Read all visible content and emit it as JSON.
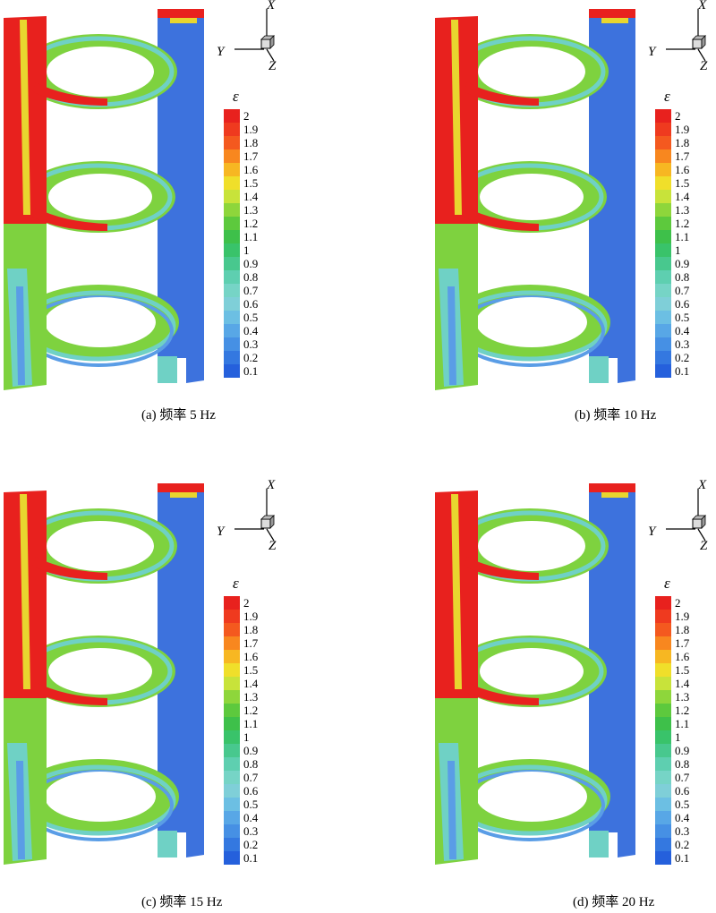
{
  "figure": {
    "panels": [
      {
        "caption": "(a) 频率 5 Hz"
      },
      {
        "caption": "(b) 频率 10 Hz"
      },
      {
        "caption": "(c) 频率 15 Hz"
      },
      {
        "caption": "(d) 频率 20 Hz"
      }
    ],
    "axes": {
      "x": "X",
      "y": "Y",
      "z": "Z"
    },
    "legend": {
      "title": "ε",
      "ticks": [
        "2",
        "1.9",
        "1.8",
        "1.7",
        "1.6",
        "1.5",
        "1.4",
        "1.3",
        "1.2",
        "1.1",
        "1",
        "0.9",
        "0.8",
        "0.7",
        "0.6",
        "0.5",
        "0.4",
        "0.3",
        "0.2",
        "0.1"
      ],
      "colors": [
        "#e8211e",
        "#ef3a1f",
        "#f4591f",
        "#f8871f",
        "#f7b722",
        "#f0df2a",
        "#c8e33a",
        "#8ed63b",
        "#5dc93d",
        "#3ec04a",
        "#39c36a",
        "#48c88e",
        "#5ecfb0",
        "#76d4c6",
        "#7fcfd8",
        "#6cbfe3",
        "#58a7e6",
        "#4690e4",
        "#3478e0",
        "#2560dc"
      ]
    },
    "model_colors": {
      "red": "#e8211e",
      "blue": "#3d72dd",
      "green": "#7ed23f",
      "cyan": "#6fd1c5",
      "yellow": "#e8d62f",
      "light_blue": "#5a9de6"
    }
  }
}
